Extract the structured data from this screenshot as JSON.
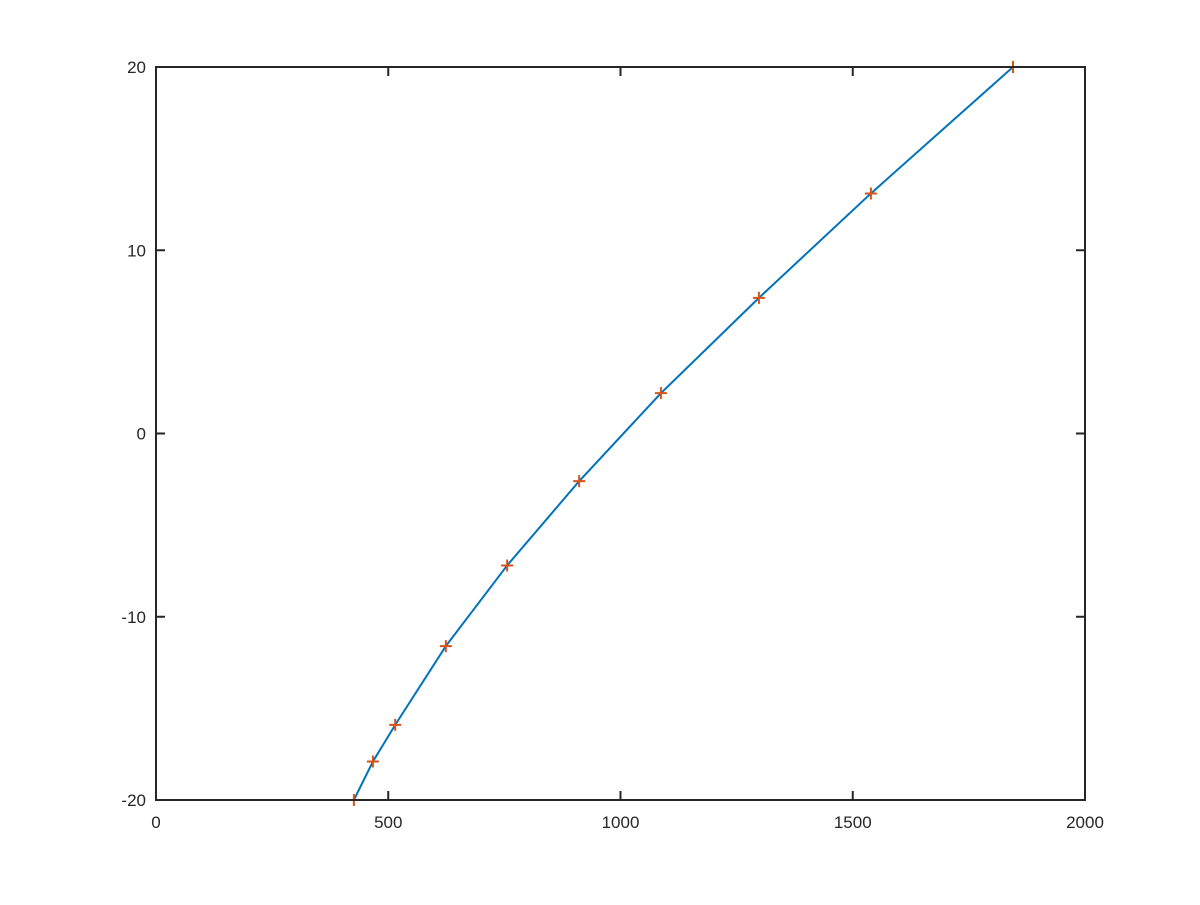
{
  "chart_data": {
    "type": "line",
    "title": "",
    "xlabel": "",
    "ylabel": "",
    "xlim": [
      0,
      2000
    ],
    "ylim": [
      -20,
      20
    ],
    "xticks": [
      0,
      500,
      1000,
      1500,
      2000
    ],
    "yticks": [
      -20,
      -10,
      0,
      10,
      20
    ],
    "xtick_labels": [
      "0",
      "500",
      "1000",
      "1500",
      "2000"
    ],
    "ytick_labels": [
      "-20",
      "-10",
      "0",
      "10",
      "20"
    ],
    "grid": false,
    "series": [
      {
        "style": "line",
        "color": "#0072BD",
        "x": [
          426,
          467,
          515,
          624,
          756,
          911,
          1087,
          1298,
          1539,
          1845
        ],
        "y": [
          -20,
          -17.9,
          -15.9,
          -11.6,
          -7.2,
          -2.6,
          2.2,
          7.4,
          13.1,
          20
        ]
      },
      {
        "style": "markers-plus",
        "color": "#D95319",
        "x": [
          426,
          467,
          515,
          624,
          756,
          911,
          1087,
          1298,
          1539,
          1845
        ],
        "y": [
          -20,
          -17.9,
          -15.9,
          -11.6,
          -7.2,
          -2.6,
          2.2,
          7.4,
          13.1,
          20
        ]
      }
    ]
  }
}
